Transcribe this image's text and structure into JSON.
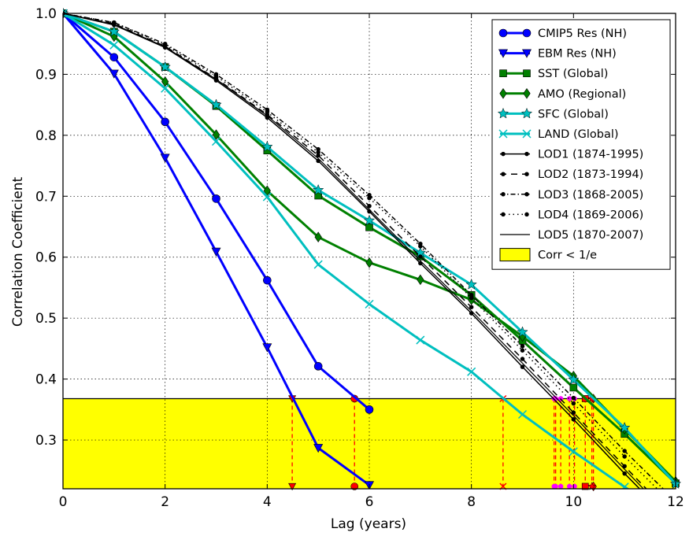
{
  "chart_data": {
    "type": "line",
    "xlabel": "Lag (years)",
    "ylabel": "Correlation Coefficient",
    "xlim": [
      0,
      12
    ],
    "ylim": [
      0.22,
      1.0
    ],
    "xticks": [
      "0",
      "2",
      "4",
      "6",
      "8",
      "10",
      "12"
    ],
    "yticks": [
      "0.3",
      "0.4",
      "0.5",
      "0.6",
      "0.7",
      "0.8",
      "0.9",
      "1.0"
    ],
    "grid": true,
    "legend_position": "top-right",
    "threshold": {
      "label": "Corr < 1/e",
      "value": 0.3679,
      "color": "#ffff00"
    },
    "series": [
      {
        "name": "CMIP5 Res (NH)",
        "color": "#0000ff",
        "marker": "circle",
        "dash": "",
        "lw": 3,
        "x": [
          0,
          1,
          2,
          3,
          4,
          5,
          6
        ],
        "y": [
          1.0,
          0.928,
          0.822,
          0.696,
          0.562,
          0.421,
          0.35
        ],
        "cross_x": 5.71
      },
      {
        "name": "EBM Res (NH)",
        "color": "#0000ff",
        "marker": "triangle",
        "dash": "",
        "lw": 3,
        "x": [
          0,
          1,
          2,
          3,
          4,
          5,
          6
        ],
        "y": [
          1.0,
          0.901,
          0.763,
          0.609,
          0.452,
          0.287,
          0.226
        ],
        "cross_x": 4.49
      },
      {
        "name": "SST (Global)",
        "color": "#008000",
        "marker": "square",
        "dash": "",
        "lw": 3,
        "x": [
          0,
          1,
          2,
          3,
          4,
          5,
          6,
          7,
          8,
          9,
          10,
          11,
          12
        ],
        "y": [
          1.0,
          0.97,
          0.912,
          0.848,
          0.775,
          0.701,
          0.649,
          0.601,
          0.538,
          0.463,
          0.386,
          0.31,
          0.229
        ],
        "cross_x": 10.23
      },
      {
        "name": "AMO (Regional)",
        "color": "#008000",
        "marker": "diamond",
        "dash": "",
        "lw": 3,
        "x": [
          0,
          1,
          2,
          3,
          4,
          5,
          6,
          7,
          8,
          9,
          10,
          11,
          12
        ],
        "y": [
          1.0,
          0.962,
          0.888,
          0.801,
          0.709,
          0.633,
          0.591,
          0.563,
          0.53,
          0.47,
          0.405,
          0.318,
          0.232
        ],
        "cross_x": 10.39
      },
      {
        "name": "SFC (Global)",
        "color": "#00bfbf",
        "marker": "star",
        "dash": "",
        "lw": 3,
        "x": [
          0,
          1,
          2,
          3,
          4,
          5,
          6,
          7,
          8,
          9,
          10,
          11,
          12
        ],
        "y": [
          1.0,
          0.97,
          0.912,
          0.85,
          0.781,
          0.71,
          0.66,
          0.607,
          0.555,
          0.477,
          0.399,
          0.32,
          0.228
        ],
        "cross_x": 10.36
      },
      {
        "name": "LAND (Global)",
        "color": "#00bfbf",
        "marker": "x",
        "dash": "",
        "lw": 3,
        "x": [
          0,
          1,
          2,
          3,
          4,
          5,
          6,
          7,
          8,
          9,
          10,
          11,
          12
        ],
        "y": [
          1.0,
          0.948,
          0.877,
          0.79,
          0.699,
          0.588,
          0.523,
          0.464,
          0.412,
          0.342,
          0.281,
          0.223,
          0.17
        ],
        "cross_x": 8.62
      },
      {
        "name": "LOD1 (1874-1995)",
        "color": "#000000",
        "marker": "dot",
        "dash": "",
        "lw": 1.5,
        "x": [
          0,
          1,
          2,
          3,
          4,
          5,
          6,
          7,
          8,
          9,
          10,
          11,
          12
        ],
        "y": [
          1.0,
          0.981,
          0.944,
          0.89,
          0.829,
          0.758,
          0.675,
          0.59,
          0.508,
          0.42,
          0.334,
          0.245,
          0.16
        ],
        "cross_x": 9.65
      },
      {
        "name": "LOD2 (1873-1994)",
        "color": "#000000",
        "marker": "dot",
        "dash": "8,6",
        "lw": 1.5,
        "x": [
          0,
          1,
          2,
          3,
          4,
          5,
          6,
          7,
          8,
          9,
          10,
          11,
          12
        ],
        "y": [
          1.0,
          0.983,
          0.946,
          0.893,
          0.834,
          0.767,
          0.684,
          0.601,
          0.518,
          0.433,
          0.345,
          0.257,
          0.17
        ],
        "cross_x": 9.75
      },
      {
        "name": "LOD3 (1868-2005)",
        "color": "#000000",
        "marker": "dot",
        "dash": "6,3,1.5,3",
        "lw": 1.5,
        "x": [
          0,
          1,
          2,
          3,
          4,
          5,
          6,
          7,
          8,
          9,
          10,
          11,
          12
        ],
        "y": [
          1.0,
          0.985,
          0.95,
          0.9,
          0.842,
          0.777,
          0.702,
          0.622,
          0.538,
          0.454,
          0.369,
          0.282,
          0.2
        ],
        "cross_x": 10.02
      },
      {
        "name": "LOD4 (1869-2006)",
        "color": "#000000",
        "marker": "dot",
        "dash": "1.5,4",
        "lw": 1.5,
        "x": [
          0,
          1,
          2,
          3,
          4,
          5,
          6,
          7,
          8,
          9,
          10,
          11,
          12
        ],
        "y": [
          1.0,
          0.985,
          0.948,
          0.897,
          0.838,
          0.772,
          0.697,
          0.618,
          0.533,
          0.447,
          0.36,
          0.273,
          0.19
        ],
        "cross_x": 9.92
      },
      {
        "name": "LOD5 (1870-2007)",
        "color": "#000000",
        "marker": "none",
        "dash": "",
        "lw": 1.2,
        "x": [
          0,
          1,
          2,
          3,
          4,
          5,
          6,
          7,
          8,
          9,
          10,
          11,
          12
        ],
        "y": [
          1.0,
          0.982,
          0.945,
          0.892,
          0.832,
          0.762,
          0.678,
          0.594,
          0.512,
          0.426,
          0.34,
          0.252,
          0.165
        ],
        "cross_x": 9.62
      }
    ],
    "magenta_markers_x": [
      9.62,
      9.65,
      9.75,
      9.92,
      10.02
    ]
  }
}
